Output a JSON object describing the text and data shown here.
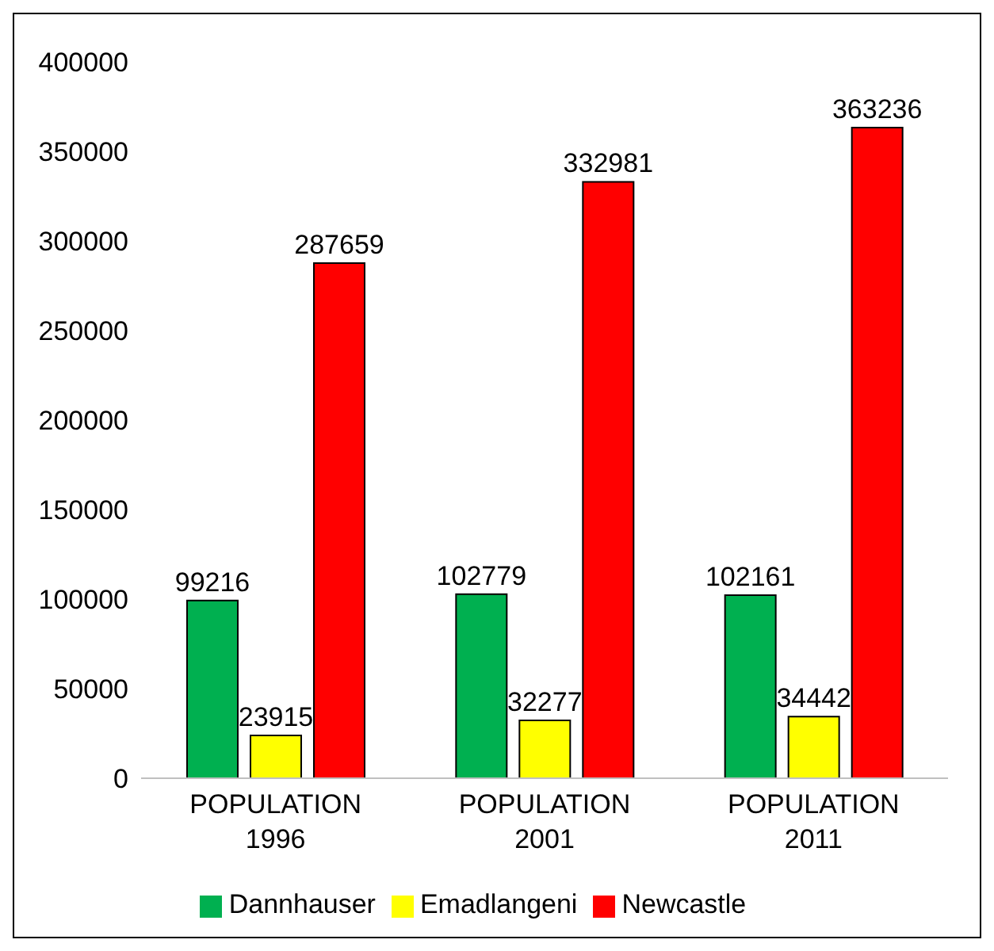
{
  "chart_data": {
    "type": "bar",
    "categories": [
      "POPULATION 1996",
      "POPULATION 2001",
      "POPULATION 2011"
    ],
    "series": [
      {
        "name": "Dannhauser",
        "color": "#00b050",
        "values": [
          99216,
          102779,
          102161
        ]
      },
      {
        "name": "Emadlangeni",
        "color": "#ffff00",
        "values": [
          23915,
          32277,
          34442
        ]
      },
      {
        "name": "Newcastle",
        "color": "#ff0000",
        "values": [
          287659,
          332981,
          363236
        ]
      }
    ],
    "ylim": [
      0,
      400000
    ],
    "yticks": [
      0,
      50000,
      100000,
      150000,
      200000,
      250000,
      300000,
      350000,
      400000
    ],
    "grid": false,
    "legend": "bottom",
    "data_labels": true
  }
}
